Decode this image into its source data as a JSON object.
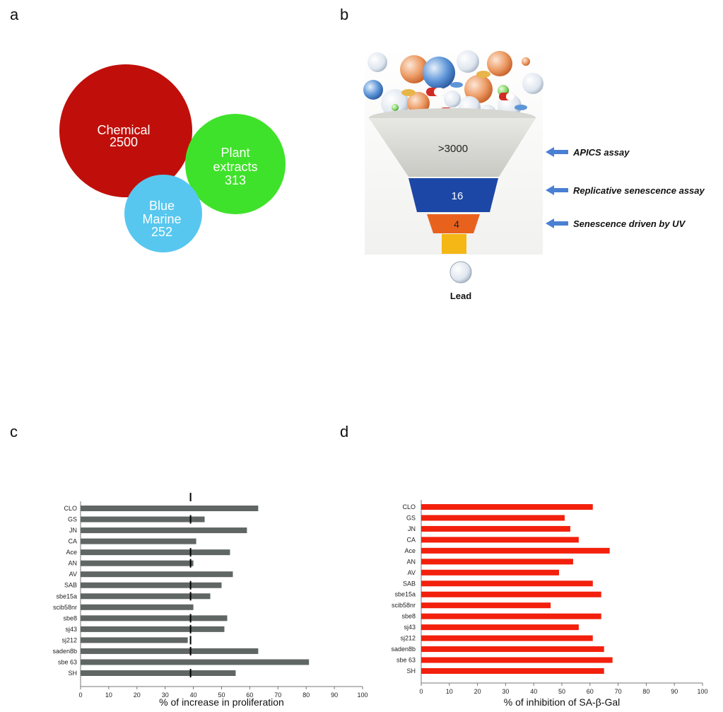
{
  "panels": {
    "a": "a",
    "b": "b",
    "c": "c",
    "d": "d"
  },
  "venn": {
    "circles": [
      {
        "label1": "Chemical",
        "label2": "",
        "value": "2500",
        "color": "#c00f0a"
      },
      {
        "label1": "Plant",
        "label2": "extracts",
        "value": "313",
        "color": "#3fe22a"
      },
      {
        "label1": "Blue",
        "label2": "Marine",
        "value": "252",
        "color": "#57c7ef"
      }
    ]
  },
  "funnel": {
    "levels": [
      {
        "count": ">3000",
        "assay": "APICS assay",
        "color": "#dcdcd8"
      },
      {
        "count": "16",
        "assay": "Replicative senescence assay",
        "color": "#1c47a6"
      },
      {
        "count": "4",
        "assay": "Senescence driven by UV",
        "color": "#e8621e"
      }
    ],
    "lead_label": "Lead",
    "arrow_color": "#4a7fd4"
  },
  "chart_data": [
    {
      "type": "bar",
      "orientation": "horizontal",
      "panel": "c",
      "categories": [
        "CLO",
        "GS",
        "JN",
        "CA",
        "Ace",
        "AN",
        "AV",
        "SAB",
        "sbe15a",
        "scib58nr",
        "sbe8",
        "sj43",
        "sj212",
        "saden8b",
        "sbe 63",
        "SH"
      ],
      "values": [
        63,
        44,
        59,
        41,
        53,
        40,
        54,
        50,
        46,
        40,
        52,
        51,
        38,
        63,
        81,
        55
      ],
      "reference_marker": 39,
      "reference_marker_rows": [
        "top",
        "GS",
        "Ace",
        "AN",
        "SAB",
        "sbe15a",
        "sbe8",
        "sj43",
        "sj212",
        "saden8b",
        "SH"
      ],
      "xlabel": "% of increase in proliferation",
      "xlim": [
        0,
        100
      ],
      "xticks": [
        "0",
        "10",
        "20",
        "30",
        "40",
        "50",
        "60",
        "70",
        "80",
        "90",
        "100"
      ],
      "bar_color": "#606664",
      "grid": false
    },
    {
      "type": "bar",
      "orientation": "horizontal",
      "panel": "d",
      "categories": [
        "CLO",
        "GS",
        "JN",
        "CA",
        "Ace",
        "AN",
        "AV",
        "SAB",
        "sbe15a",
        "scib58nr",
        "sbe8",
        "sj43",
        "sj212",
        "saden8b",
        "sbe 63",
        "SH"
      ],
      "values": [
        61,
        51,
        53,
        56,
        67,
        54,
        49,
        61,
        64,
        46,
        64,
        56,
        61,
        65,
        68,
        65
      ],
      "xlabel": "% of inhibition of SA-β-Gal",
      "xlim": [
        0,
        100
      ],
      "xticks": [
        "0",
        "10",
        "20",
        "30",
        "40",
        "50",
        "60",
        "70",
        "80",
        "90",
        "100"
      ],
      "bar_color": "#f2200c",
      "grid": false
    }
  ]
}
